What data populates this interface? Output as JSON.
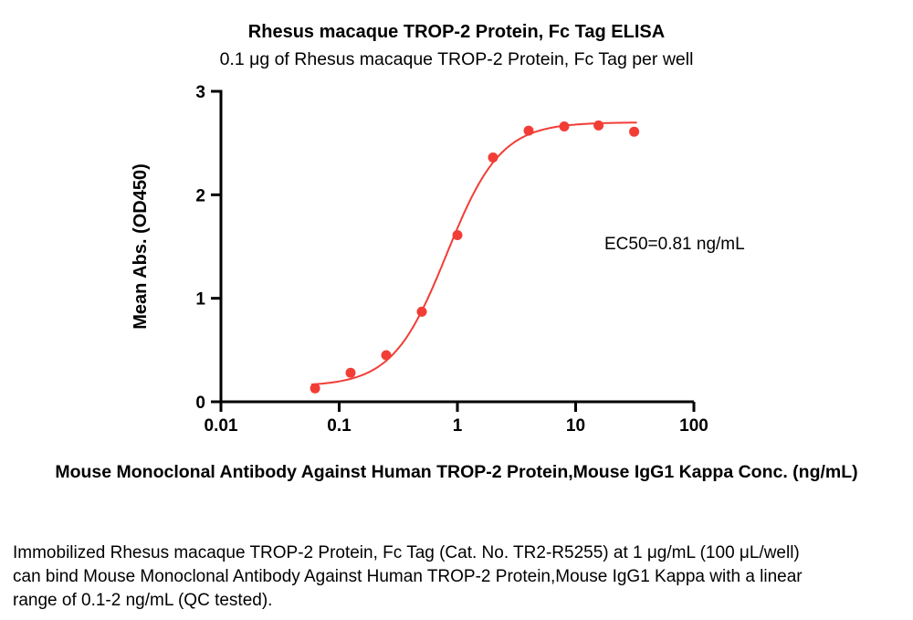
{
  "chart_data": {
    "type": "scatter",
    "title": "Rhesus macaque TROP-2 Protein, Fc Tag ELISA",
    "subtitle": "0.1 μg of Rhesus macaque TROP-2 Protein, Fc Tag per well",
    "xlabel": "Mouse Monoclonal Antibody Against Human TROP-2 Protein,Mouse IgG1 Kappa Conc. (ng/mL)",
    "ylabel": "Mean Abs. (OD450)",
    "x_scale": "log",
    "xlim": [
      0.01,
      100
    ],
    "ylim": [
      0,
      3
    ],
    "x_ticks": [
      0.01,
      0.1,
      1,
      10,
      100
    ],
    "x_tick_labels": [
      "0.01",
      "0.1",
      "1",
      "10",
      "100"
    ],
    "y_ticks": [
      0,
      1,
      2,
      3
    ],
    "y_tick_labels": [
      "0",
      "1",
      "2",
      "3"
    ],
    "grid": false,
    "legend": false,
    "series": [
      {
        "name": "Mean Abs. OD450",
        "color": "#f23d36",
        "x": [
          0.0625,
          0.125,
          0.25,
          0.5,
          1,
          2,
          4,
          8,
          15.625,
          31.25
        ],
        "y": [
          0.13,
          0.28,
          0.45,
          0.87,
          1.61,
          2.36,
          2.62,
          2.66,
          2.67,
          2.61
        ]
      }
    ],
    "fit": {
      "model": "4PL",
      "bottom": 0.15,
      "top": 2.7,
      "ec50": 0.81,
      "hill": 1.9,
      "draw_range": [
        0.058,
        33
      ]
    },
    "annotation": "EC50=0.81 ng/mL"
  },
  "caption": "Immobilized Rhesus macaque TROP-2 Protein, Fc Tag (Cat. No. TR2-R5255) at 1 μg/mL (100 μL/well) can bind Mouse Monoclonal Antibody Against Human TROP-2 Protein,Mouse IgG1 Kappa with a linear range of 0.1-2 ng/mL (QC tested)."
}
